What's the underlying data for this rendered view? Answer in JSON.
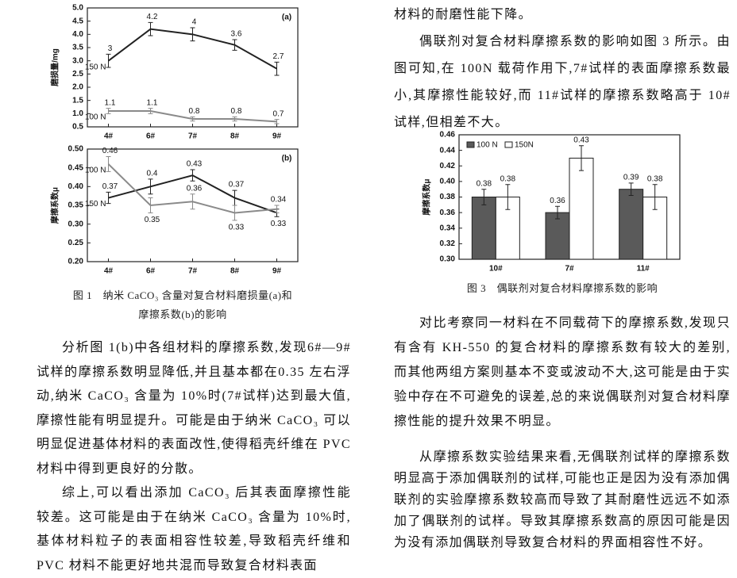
{
  "chart_data": [
    {
      "type": "line",
      "panel_label": "(a)",
      "y_label": "磨损量/mg",
      "categories": [
        "4#",
        "6#",
        "7#",
        "8#",
        "9#"
      ],
      "series": [
        {
          "name": "150 N",
          "color": "#222222",
          "values": [
            3,
            4.2,
            4,
            3.6,
            2.7
          ],
          "errors": [
            0.25,
            0.25,
            0.25,
            0.2,
            0.25
          ]
        },
        {
          "name": "100 N",
          "color": "#8a8a8a",
          "values": [
            1.1,
            1.1,
            0.8,
            0.8,
            0.7
          ],
          "errors": [
            0.1,
            0.1,
            0.08,
            0.08,
            0.08
          ]
        }
      ],
      "ylim": [
        0.5,
        5.0
      ],
      "yticks": [
        0.5,
        {
          "value": 1,
          "label": "1.0"
        },
        1.5,
        {
          "value": 2,
          "label": "2.0"
        },
        2.5,
        {
          "value": 3,
          "label": "3.0"
        },
        3.5,
        {
          "value": 4,
          "label": "4.0"
        },
        4.5,
        {
          "value": 5,
          "label": "5.0"
        }
      ]
    },
    {
      "type": "line",
      "panel_label": "(b)",
      "y_label": "摩擦系数μ",
      "categories": [
        "4#",
        "6#",
        "7#",
        "8#",
        "9#"
      ],
      "series": [
        {
          "name": "150 N",
          "color": "#222222",
          "values": [
            0.37,
            0.4,
            0.43,
            0.37,
            0.33
          ],
          "errors": [
            0.015,
            0.02,
            0.015,
            0.02,
            0.01
          ]
        },
        {
          "name": "100 N",
          "color": "#8a8a8a",
          "values": [
            0.46,
            0.35,
            0.36,
            0.33,
            0.34
          ],
          "errors": [
            0.02,
            0.02,
            0.02,
            0.02,
            0.01
          ]
        }
      ],
      "ylim": [
        0.2,
        0.5
      ],
      "yticks": [
        {
          "value": 0.2,
          "label": "0.20"
        },
        {
          "value": 0.25,
          "label": "0.25"
        },
        {
          "value": 0.3,
          "label": "0.30"
        },
        {
          "value": 0.35,
          "label": "0.35"
        },
        {
          "value": 0.4,
          "label": "0.40"
        },
        {
          "value": 0.45,
          "label": "0.45"
        },
        {
          "value": 0.5,
          "label": "0.50"
        }
      ]
    },
    {
      "type": "bar",
      "y_label": "摩擦系数μ",
      "categories": [
        "10#",
        "7#",
        "11#"
      ],
      "series": [
        {
          "name": "100 N",
          "color": "#5a5a5a",
          "values": [
            0.38,
            0.36,
            0.39
          ],
          "errors": [
            0.01,
            0.008,
            0.008
          ]
        },
        {
          "name": "150N",
          "color": "#ffffff",
          "values": [
            0.38,
            0.43,
            0.38
          ],
          "errors": [
            0.016,
            0.016,
            0.016
          ]
        }
      ],
      "ylim": [
        0.3,
        0.46
      ],
      "yticks": [
        {
          "value": 0.3,
          "label": "0.30"
        },
        {
          "value": 0.32,
          "label": "0.32"
        },
        {
          "value": 0.34,
          "label": "0.34"
        },
        {
          "value": 0.36,
          "label": "0.36"
        },
        {
          "value": 0.38,
          "label": "0.38"
        },
        {
          "value": 0.4,
          "label": "0.40"
        },
        {
          "value": 0.42,
          "label": "0.42"
        },
        {
          "value": 0.44,
          "label": "0.44"
        },
        {
          "value": 0.46,
          "label": "0.46"
        }
      ],
      "legend": "top-left"
    }
  ],
  "captions": {
    "figure1": [
      "图 1　纳米 CaCO₃ 含量对复合材料磨损量(a)和",
      "摩擦系数(b)的影响"
    ],
    "figure3": "图 3　偶联剂对复合材料摩擦系数的影响"
  },
  "left_paragraphs": [
    "分析图 1(b)中各组材料的摩擦系数,发现6#—9#试样的摩擦系数明显降低,并且基本都在0.35 左右浮动,纳米 CaCO₃ 含量为 10%时(7#试样)达到最大值,摩擦性能有明显提升。可能是由于纳米 CaCO₃ 可以明显促进基体材料的表面改性,使得稻壳纤维在 PVC 材料中得到更良好的分散。",
    "综上,可以看出添加 CaCO₃ 后其表面摩擦性能较差。这可能是由于在纳米 CaCO₃ 含量为 10%时,基体材料粒子的表面相容性较差,导致稻壳纤维和 PVC 材料不能更好地共混而导致复合材料表面"
  ],
  "right_paragraphs": [
    "材料的耐磨性能下降。",
    "偶联剂对复合材料摩擦系数的影响如图 3 所示。由图可知,在 100N 载荷作用下,7#试样的表面摩擦系数最小,其摩擦性能较好,而 11#试样的摩擦系数略高于 10#试样,但相差不大。",
    "对比考察同一材料在不同载荷下的摩擦系数,发现只有含有 KH-550 的复合材料的摩擦系数有较大的差别,而其他两组方案则基本不变或波动不大,这可能是由于实验中存在不可避免的误差,总的来说偶联剂对复合材料摩擦性能的提升效果不明显。",
    "从摩擦系数实验结果来看,无偶联剂试样的摩擦系数明显高于添加偶联剂的试样,可能也正是因为没有添加偶联剂的实验摩擦系数较高而导致了其耐磨性远远不如添加了偶联剂的试样。导致其摩擦系数高的原因可能是因为没有添加偶联剂导致复合材料的界面相容性不好。"
  ]
}
